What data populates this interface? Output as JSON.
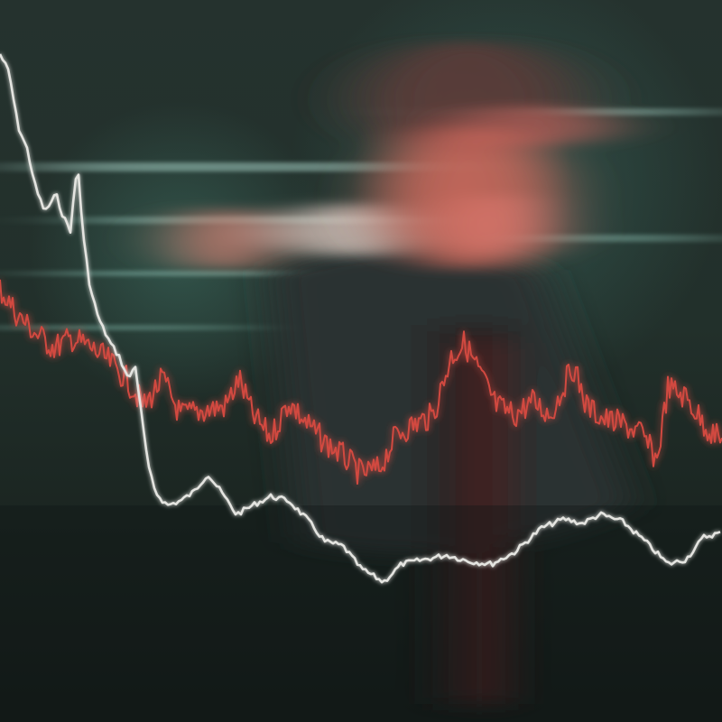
{
  "colors": {
    "background": "#1f2b27",
    "teal_glow": "#3f7d70",
    "figure_shirt": "#2a2e2b",
    "figure_face": "#c86a5c",
    "white_line": "#e4e4e0",
    "red_line": "#d24a40"
  },
  "scene": {
    "description_icon": "person-in-cap-icon",
    "effect": "horizontal-motion-blur"
  },
  "lines": [
    {
      "name": "",
      "color_key": "white_line"
    },
    {
      "name": "",
      "color_key": "red_line"
    }
  ]
}
